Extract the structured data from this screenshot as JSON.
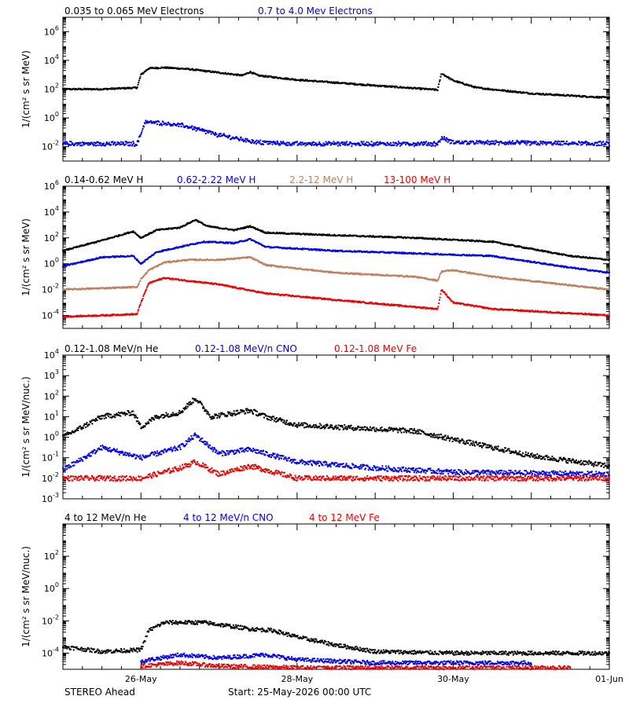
{
  "footer": {
    "left": "STEREO Ahead",
    "start": "Start: 25-May-2026 00:00 UTC"
  },
  "colors": {
    "black": "#000000",
    "blue": "#0000ee",
    "tan": "#c08060",
    "red": "#ee0000"
  },
  "chart_data": [
    {
      "type": "scatter",
      "title": "",
      "ylabel": "1/(cm² s sr MeV)",
      "yscale": "log",
      "ylim_exp": [
        -3,
        7
      ],
      "ytick_exponents": [
        -2,
        0,
        2,
        4,
        6
      ],
      "xlim_day": [
        0,
        7
      ],
      "legend": "top-left",
      "series": [
        {
          "name": "0.035 to 0.065 MeV Electrons",
          "color": "#000000",
          "points": [
            [
              0,
              2.0
            ],
            [
              0.5,
              2.0
            ],
            [
              0.95,
              2.1
            ],
            [
              1.0,
              3.0
            ],
            [
              1.1,
              3.45
            ],
            [
              1.3,
              3.5
            ],
            [
              1.6,
              3.4
            ],
            [
              2.0,
              3.15
            ],
            [
              2.3,
              2.95
            ],
            [
              2.4,
              3.2
            ],
            [
              2.5,
              2.95
            ],
            [
              3.0,
              2.65
            ],
            [
              4.0,
              2.25
            ],
            [
              4.8,
              1.95
            ],
            [
              4.85,
              3.1
            ],
            [
              5.0,
              2.6
            ],
            [
              5.3,
              2.1
            ],
            [
              6.0,
              1.7
            ],
            [
              7.0,
              1.4
            ]
          ]
        },
        {
          "name": "0.7 to 4.0 Mev Electrons",
          "color": "#0000ee",
          "points": [
            [
              0,
              -1.8
            ],
            [
              0.95,
              -1.8
            ],
            [
              1.0,
              -1.1
            ],
            [
              1.05,
              -0.3
            ],
            [
              1.3,
              -0.35
            ],
            [
              1.6,
              -0.6
            ],
            [
              2.0,
              -1.2
            ],
            [
              2.5,
              -1.7
            ],
            [
              3.0,
              -1.8
            ],
            [
              4.8,
              -1.8
            ],
            [
              4.85,
              -1.4
            ],
            [
              5.0,
              -1.7
            ],
            [
              7.0,
              -1.8
            ]
          ]
        }
      ]
    },
    {
      "type": "scatter",
      "title": "",
      "ylabel": "1/(cm² s sr MeV)",
      "yscale": "log",
      "ylim_exp": [
        -5,
        6
      ],
      "ytick_exponents": [
        -4,
        -2,
        0,
        2,
        4,
        6
      ],
      "xlim_day": [
        0,
        7
      ],
      "legend": "top-left",
      "series": [
        {
          "name": "0.14-0.62 MeV H",
          "color": "#000000",
          "points": [
            [
              0,
              1.0
            ],
            [
              0.5,
              1.8
            ],
            [
              0.9,
              2.5
            ],
            [
              1.0,
              2.0
            ],
            [
              1.2,
              2.6
            ],
            [
              1.5,
              2.8
            ],
            [
              1.7,
              3.4
            ],
            [
              1.85,
              2.9
            ],
            [
              2.2,
              2.6
            ],
            [
              2.4,
              2.9
            ],
            [
              2.6,
              2.4
            ],
            [
              3.5,
              2.2
            ],
            [
              4.5,
              2.0
            ],
            [
              5.5,
              1.7
            ],
            [
              6.5,
              0.6
            ],
            [
              7.0,
              0.3
            ]
          ]
        },
        {
          "name": "0.62-2.22 MeV H",
          "color": "#0000ee",
          "points": [
            [
              0,
              -0.2
            ],
            [
              0.5,
              0.5
            ],
            [
              0.9,
              0.6
            ],
            [
              1.0,
              0.0
            ],
            [
              1.2,
              0.9
            ],
            [
              1.5,
              1.3
            ],
            [
              1.8,
              1.7
            ],
            [
              2.2,
              1.6
            ],
            [
              2.4,
              1.9
            ],
            [
              2.6,
              1.3
            ],
            [
              3.5,
              1.0
            ],
            [
              4.5,
              0.8
            ],
            [
              5.5,
              0.6
            ],
            [
              6.5,
              -0.3
            ],
            [
              7.0,
              -0.7
            ]
          ]
        },
        {
          "name": "2.2-12 MeV H",
          "color": "#c08060",
          "points": [
            [
              0,
              -2.0
            ],
            [
              0.95,
              -1.8
            ],
            [
              1.0,
              -1.2
            ],
            [
              1.1,
              -0.5
            ],
            [
              1.3,
              0.1
            ],
            [
              1.6,
              0.3
            ],
            [
              2.0,
              0.3
            ],
            [
              2.4,
              0.5
            ],
            [
              2.6,
              -0.1
            ],
            [
              3.5,
              -0.7
            ],
            [
              4.5,
              -1.0
            ],
            [
              4.8,
              -1.3
            ],
            [
              4.85,
              -0.6
            ],
            [
              5.0,
              -0.5
            ],
            [
              5.5,
              -1.0
            ],
            [
              7.0,
              -2.0
            ]
          ]
        },
        {
          "name": "13-100 MeV H",
          "color": "#ee0000",
          "points": [
            [
              0,
              -4.1
            ],
            [
              0.95,
              -3.9
            ],
            [
              1.0,
              -3.0
            ],
            [
              1.1,
              -1.5
            ],
            [
              1.3,
              -1.1
            ],
            [
              2.0,
              -1.6
            ],
            [
              2.6,
              -2.3
            ],
            [
              3.5,
              -2.8
            ],
            [
              4.8,
              -3.5
            ],
            [
              4.85,
              -2.0
            ],
            [
              5.0,
              -3.0
            ],
            [
              5.5,
              -3.5
            ],
            [
              7.0,
              -4.0
            ]
          ]
        }
      ]
    },
    {
      "type": "scatter",
      "title": "",
      "ylabel": "1/(cm² s sr MeV/nuc.)",
      "yscale": "log",
      "ylim_exp": [
        -3,
        4
      ],
      "ytick_exponents": [
        -3,
        -2,
        -1,
        0,
        1,
        2,
        3,
        4
      ],
      "xlim_day": [
        0,
        7
      ],
      "legend": "top-left",
      "series": [
        {
          "name": "0.12-1.08 MeV/n He",
          "color": "#000000",
          "points": [
            [
              0,
              0.0
            ],
            [
              0.5,
              1.0
            ],
            [
              0.9,
              1.2
            ],
            [
              1.0,
              0.5
            ],
            [
              1.2,
              1.0
            ],
            [
              1.5,
              1.2
            ],
            [
              1.7,
              1.9
            ],
            [
              1.9,
              1.0
            ],
            [
              2.4,
              1.3
            ],
            [
              2.6,
              1.0
            ],
            [
              3.0,
              0.6
            ],
            [
              4.0,
              0.4
            ],
            [
              4.5,
              0.3
            ],
            [
              5.5,
              -0.5
            ],
            [
              6.0,
              -0.9
            ],
            [
              7.0,
              -1.4
            ]
          ]
        },
        {
          "name": "0.12-1.08 MeV/n CNO",
          "color": "#0000ee",
          "points": [
            [
              0,
              -1.6
            ],
            [
              0.5,
              -0.5
            ],
            [
              1.0,
              -1.0
            ],
            [
              1.5,
              -0.5
            ],
            [
              1.7,
              0.1
            ],
            [
              2.0,
              -0.8
            ],
            [
              2.4,
              -0.6
            ],
            [
              3.0,
              -1.2
            ],
            [
              4.0,
              -1.5
            ],
            [
              5.0,
              -1.7
            ],
            [
              7.0,
              -1.8
            ]
          ]
        },
        {
          "name": "0.12-1.08 MeV Fe",
          "color": "#ee0000",
          "points": [
            [
              0,
              -2.0
            ],
            [
              1.0,
              -2.0
            ],
            [
              1.5,
              -1.5
            ],
            [
              1.7,
              -1.2
            ],
            [
              2.0,
              -1.8
            ],
            [
              2.4,
              -1.4
            ],
            [
              3.0,
              -2.0
            ],
            [
              7.0,
              -2.0
            ]
          ]
        }
      ]
    },
    {
      "type": "scatter",
      "title": "",
      "ylabel": "1/(cm² s sr MeV/nuc.)",
      "yscale": "log",
      "ylim_exp": [
        -5,
        4
      ],
      "ytick_exponents": [
        -4,
        -2,
        0,
        2
      ],
      "xlim_day": [
        0,
        7
      ],
      "xtick_days": [
        1,
        3,
        5,
        7
      ],
      "xtick_labels": [
        "26-May",
        "28-May",
        "30-May",
        "01-Jun"
      ],
      "legend": "top-left",
      "series": [
        {
          "name": "4 to 12 MeV/n He",
          "color": "#000000",
          "points": [
            [
              0,
              -3.6
            ],
            [
              0.5,
              -3.9
            ],
            [
              1.0,
              -3.8
            ],
            [
              1.1,
              -2.6
            ],
            [
              1.3,
              -2.1
            ],
            [
              1.8,
              -2.1
            ],
            [
              2.4,
              -2.5
            ],
            [
              2.7,
              -2.6
            ],
            [
              3.0,
              -3.0
            ],
            [
              3.5,
              -3.5
            ],
            [
              4.0,
              -3.9
            ],
            [
              5.0,
              -4.0
            ],
            [
              6.0,
              -4.0
            ],
            [
              7.0,
              -4.0
            ]
          ]
        },
        {
          "name": "4 to 12 MeV/n CNO",
          "color": "#0000ee",
          "points": [
            [
              1.0,
              -4.5
            ],
            [
              1.5,
              -4.1
            ],
            [
              2.0,
              -4.3
            ],
            [
              2.6,
              -4.1
            ],
            [
              3.0,
              -4.4
            ],
            [
              4.0,
              -4.6
            ],
            [
              5.0,
              -4.6
            ],
            [
              6.0,
              -4.6
            ]
          ]
        },
        {
          "name": "4 to 12 MeV Fe",
          "color": "#ee0000",
          "points": [
            [
              1.0,
              -4.8
            ],
            [
              1.5,
              -4.6
            ],
            [
              2.0,
              -4.8
            ],
            [
              3.0,
              -4.9
            ],
            [
              4.0,
              -4.9
            ],
            [
              6.5,
              -4.9
            ]
          ]
        }
      ]
    }
  ]
}
